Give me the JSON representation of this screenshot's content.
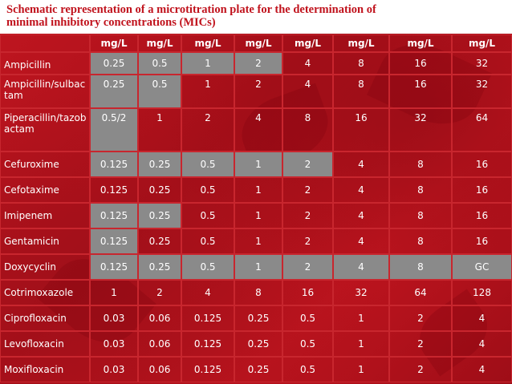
{
  "title_line1": "Schematic representation of a microtitration plate for the determination of",
  "title_line2": "minimal inhibitory concentrations (MICs)",
  "colors": {
    "background": "#b3121a",
    "grey_well": "#8a8a8a",
    "title_text": "#c0121c"
  },
  "header": [
    "",
    "mg/L",
    "mg/L",
    "mg/L",
    "mg/L",
    "mg/L",
    "mg/L",
    "mg/L",
    "mg/L"
  ],
  "rows": [
    {
      "name": "Ampicillin",
      "values": [
        "0.25",
        "0.5",
        "1",
        "2",
        "4",
        "8",
        "16",
        "32"
      ],
      "grey": 4
    },
    {
      "name": "Ampicillin/sulbactam",
      "values": [
        "0.25",
        "0.5",
        "1",
        "2",
        "4",
        "8",
        "16",
        "32"
      ],
      "grey": 2
    },
    {
      "name": "Piperacillin/tazobactam",
      "values": [
        "0.5/2",
        "1",
        "2",
        "4",
        "8",
        "16",
        "32",
        "64"
      ],
      "grey": 1
    },
    {
      "name": "Cefuroxime",
      "values": [
        "0.125",
        "0.25",
        "0.5",
        "1",
        "2",
        "4",
        "8",
        "16"
      ],
      "grey": 5
    },
    {
      "name": "Cefotaxime",
      "values": [
        "0.125",
        "0.25",
        "0.5",
        "1",
        "2",
        "4",
        "8",
        "16"
      ],
      "grey": 0
    },
    {
      "name": "Imipenem",
      "values": [
        "0.125",
        "0.25",
        "0.5",
        "1",
        "2",
        "4",
        "8",
        "16"
      ],
      "grey": 2
    },
    {
      "name": "Gentamicin",
      "values": [
        "0.125",
        "0.25",
        "0.5",
        "1",
        "2",
        "4",
        "8",
        "16"
      ],
      "grey": 1
    },
    {
      "name": "Doxycyclin",
      "values": [
        "0.125",
        "0.25",
        "0.5",
        "1",
        "2",
        "4",
        "8",
        "GC"
      ],
      "grey": 8
    },
    {
      "name": "Cotrimoxazole",
      "values": [
        "1",
        "2",
        "4",
        "8",
        "16",
        "32",
        "64",
        "128"
      ],
      "grey": 0
    },
    {
      "name": "Ciprofloxacin",
      "values": [
        "0.03",
        "0.06",
        "0.125",
        "0.25",
        "0.5",
        "1",
        "2",
        "4"
      ],
      "grey": 0
    },
    {
      "name": "Levofloxacin",
      "values": [
        "0.03",
        "0.06",
        "0.125",
        "0.25",
        "0.5",
        "1",
        "2",
        "4"
      ],
      "grey": 0
    },
    {
      "name": "Moxifloxacin",
      "values": [
        "0.03",
        "0.06",
        "0.125",
        "0.25",
        "0.5",
        "1",
        "2",
        "4"
      ],
      "grey": 0
    }
  ]
}
